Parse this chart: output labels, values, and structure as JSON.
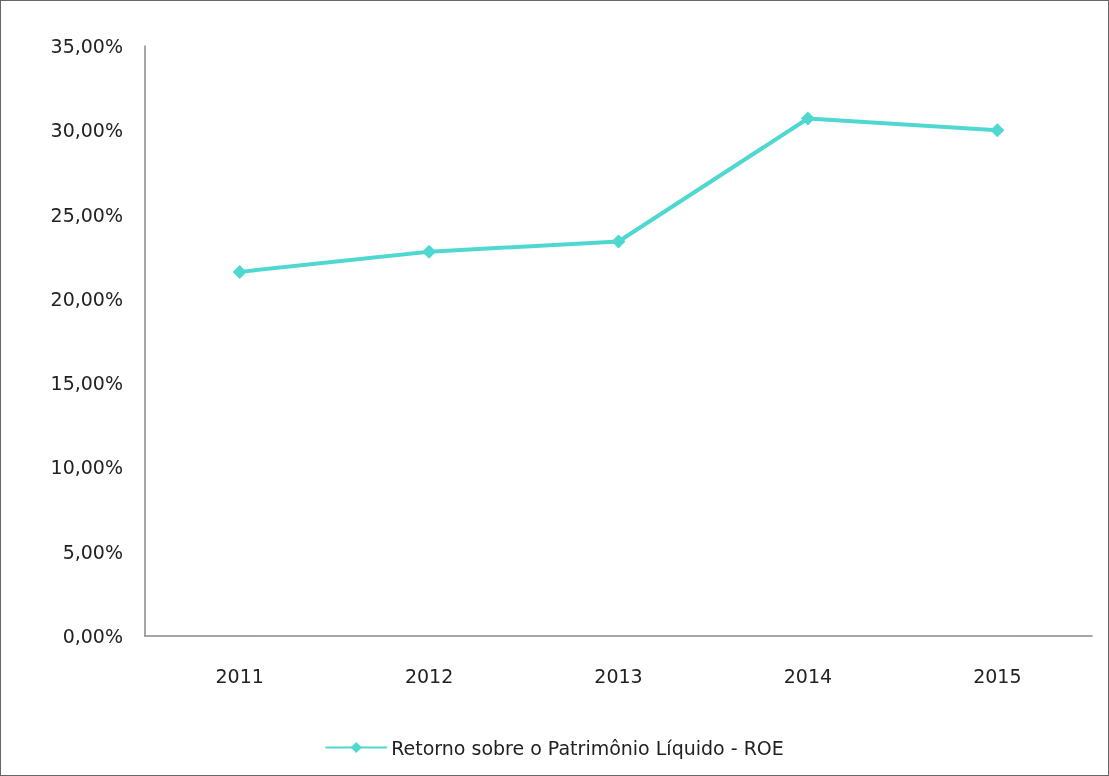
{
  "chart_data": {
    "type": "line",
    "categories": [
      "2011",
      "2012",
      "2013",
      "2014",
      "2015"
    ],
    "series": [
      {
        "name": "Retorno sobre o Patrimônio Líquido - ROE",
        "color": "#4fd8d0",
        "values": [
          21.6,
          22.8,
          23.4,
          30.7,
          30.0
        ]
      }
    ],
    "ylim": [
      0,
      35
    ],
    "yticks": [
      {
        "value": 0,
        "label": "0,00%"
      },
      {
        "value": 5,
        "label": "5,00%"
      },
      {
        "value": 10,
        "label": "10,00%"
      },
      {
        "value": 15,
        "label": "15,00%"
      },
      {
        "value": 20,
        "label": "20,00%"
      },
      {
        "value": 25,
        "label": "25,00%"
      },
      {
        "value": 30,
        "label": "30,00%"
      },
      {
        "value": 35,
        "label": "35,00%"
      }
    ],
    "legend": "bottom",
    "marker": "diamond",
    "line_style": "solid"
  }
}
